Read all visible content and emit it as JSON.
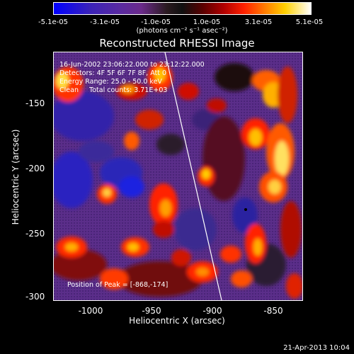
{
  "colorbar": {
    "ticks": [
      "-5.1e-05",
      "-3.1e-05",
      "-1.0e-05",
      "1.0e-05",
      "3.1e-05",
      "5.1e-05"
    ],
    "unit": "(photons cm⁻² s⁻¹ asec⁻²)"
  },
  "title": "Reconstructed RHESSI Image",
  "info": {
    "line1": "16-Jun-2002 23:06:22.000 to 23:12:22.000",
    "line2": "Detectors: 4F 5F 6F 7F 8F, Att 0",
    "line3": "Energy Range: 25.0 - 50.0 keV",
    "line4": "Clean     Total counts: 3.71E+03",
    "peak": "Position of Peak = [-868,-174]"
  },
  "axes": {
    "x_title": "Heliocentric X (arcsec)",
    "y_title": "Heliocentric Y (arcsec)",
    "x_ticks": [
      "-1000",
      "-950",
      "-900",
      "-850"
    ],
    "y_ticks": [
      "-150",
      "-200",
      "-250",
      "-300"
    ]
  },
  "timestamp": "21-Apr-2013 10:04",
  "colors": {
    "background": "#000000",
    "limb_line": "#ffffff",
    "peak_marker": "#000000"
  }
}
